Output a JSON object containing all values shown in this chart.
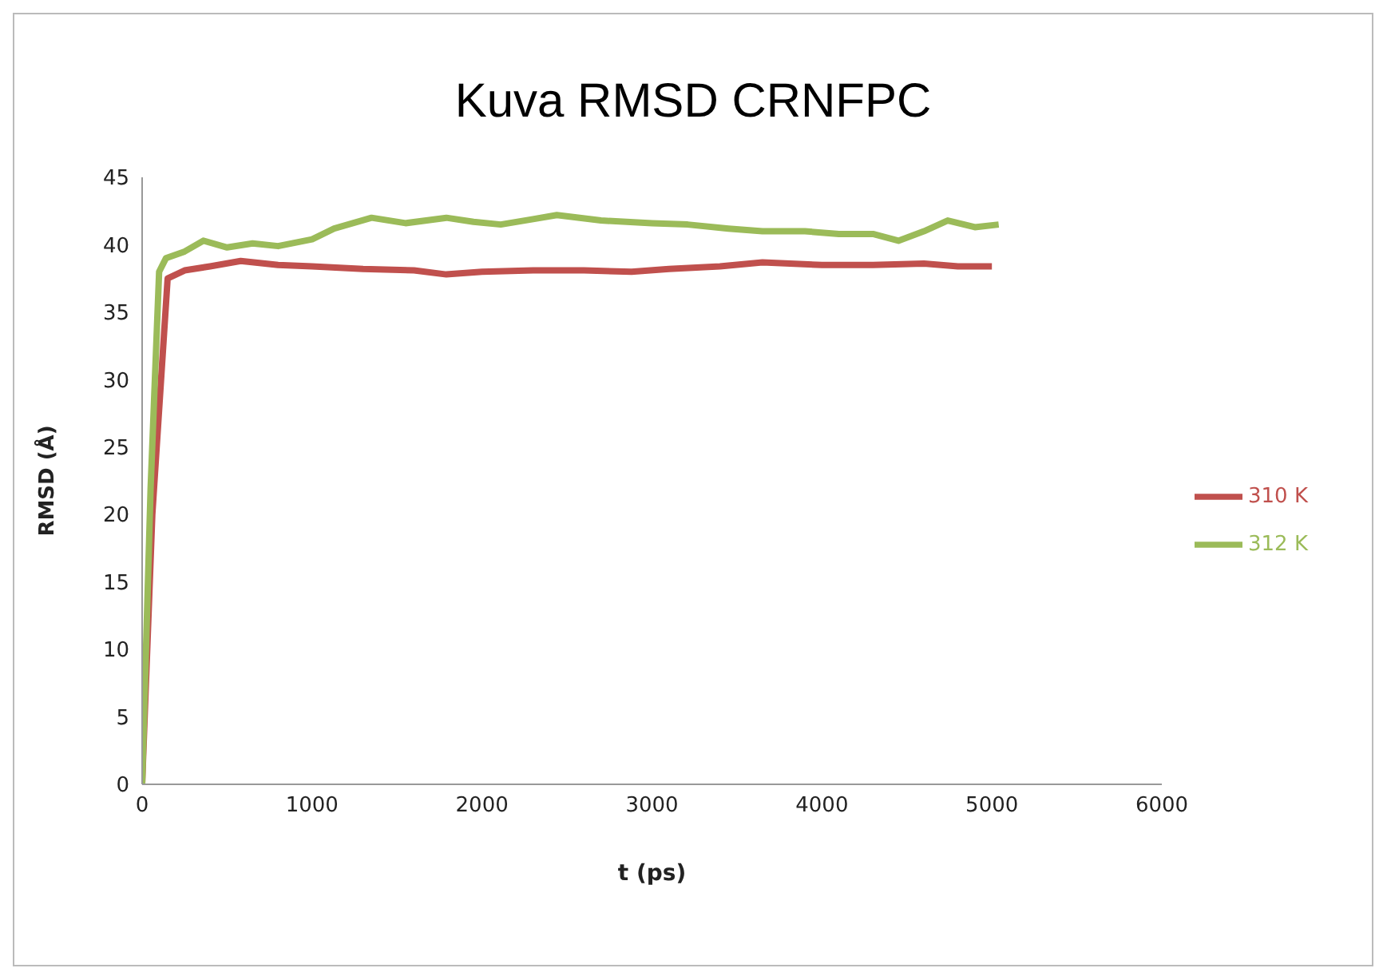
{
  "chart_data": {
    "type": "line",
    "title": "Kuva RMSD CRNFPC",
    "xlabel": "t (ps)",
    "ylabel": "RMSD (Å)",
    "xlim": [
      0,
      6000
    ],
    "xticks": [
      0,
      1000,
      2000,
      3000,
      4000,
      5000,
      6000
    ],
    "ylim": [
      0,
      45
    ],
    "yticks": [
      0,
      5,
      10,
      15,
      20,
      25,
      30,
      35,
      40,
      45
    ],
    "grid": false,
    "legend": "right",
    "marker": "none",
    "line_style": "solid",
    "series": [
      {
        "name": "310 K",
        "color": "#c0504d",
        "x": [
          0,
          60,
          150,
          250,
          400,
          580,
          800,
          1000,
          1300,
          1600,
          1790,
          2000,
          2300,
          2600,
          2880,
          3100,
          3400,
          3650,
          4000,
          4300,
          4600,
          4800,
          5000
        ],
        "values": [
          0,
          20,
          37.5,
          38.1,
          38.4,
          38.8,
          38.5,
          38.4,
          38.2,
          38.1,
          37.8,
          38.0,
          38.1,
          38.1,
          38.0,
          38.2,
          38.4,
          38.7,
          38.5,
          38.5,
          38.6,
          38.4,
          38.4
        ]
      },
      {
        "name": "312 K",
        "color": "#9bbb59",
        "x": [
          0,
          50,
          100,
          140,
          250,
          360,
          500,
          650,
          800,
          1000,
          1130,
          1350,
          1550,
          1790,
          1950,
          2110,
          2300,
          2440,
          2700,
          3000,
          3210,
          3450,
          3650,
          3900,
          4100,
          4300,
          4450,
          4600,
          4740,
          4900,
          5040
        ],
        "values": [
          0,
          22,
          38,
          39,
          39.5,
          40.3,
          39.8,
          40.1,
          39.9,
          40.4,
          41.2,
          42,
          41.6,
          42,
          41.7,
          41.5,
          41.9,
          42.2,
          41.8,
          41.6,
          41.5,
          41.2,
          41,
          41,
          40.8,
          40.8,
          40.3,
          41,
          41.8,
          41.3,
          41.5
        ]
      }
    ]
  }
}
